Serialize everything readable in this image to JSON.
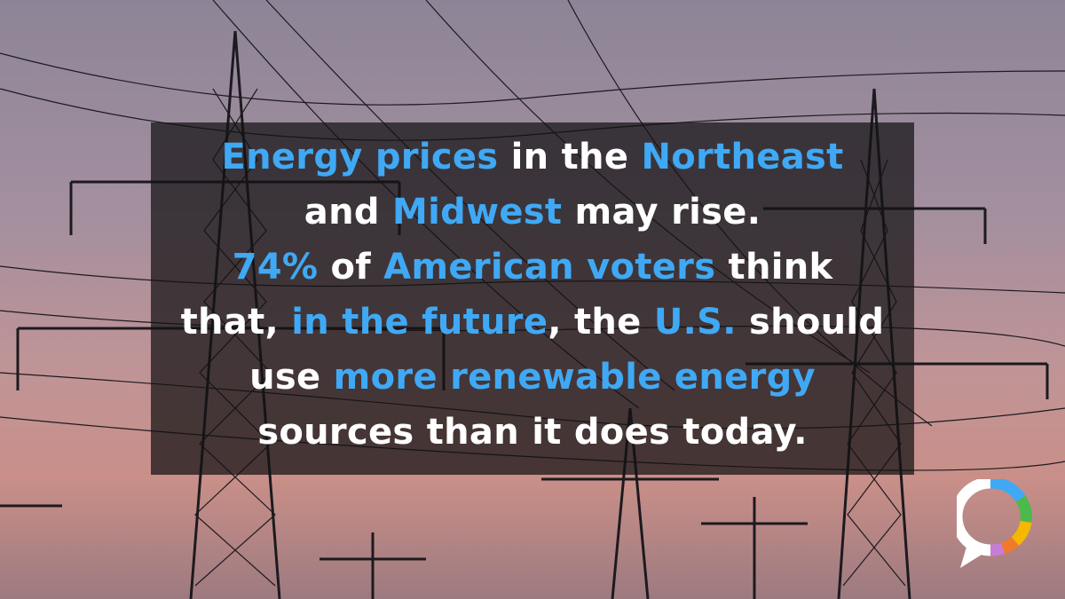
{
  "accent_color": "#3fa9f5",
  "text_color": "#ffffff",
  "lines": [
    {
      "segments": [
        {
          "text": "Energy prices",
          "highlight": true
        },
        {
          "text": " in the ",
          "highlight": false
        },
        {
          "text": "Northeast",
          "highlight": true
        }
      ]
    },
    {
      "segments": [
        {
          "text": "and ",
          "highlight": false
        },
        {
          "text": "Midwest",
          "highlight": true
        },
        {
          "text": " may rise.",
          "highlight": false
        }
      ]
    },
    {
      "segments": [
        {
          "text": "74%",
          "highlight": true
        },
        {
          "text": " of ",
          "highlight": false
        },
        {
          "text": "American voters",
          "highlight": true
        },
        {
          "text": " think",
          "highlight": false
        }
      ]
    },
    {
      "segments": [
        {
          "text": "that, ",
          "highlight": false
        },
        {
          "text": "in the future",
          "highlight": true
        },
        {
          "text": ", the ",
          "highlight": false
        },
        {
          "text": "U.S.",
          "highlight": true
        },
        {
          "text": " should",
          "highlight": false
        }
      ]
    },
    {
      "segments": [
        {
          "text": "use ",
          "highlight": false
        },
        {
          "text": "more renewable energy",
          "highlight": true
        }
      ]
    },
    {
      "segments": [
        {
          "text": "sources than it does today.",
          "highlight": false
        }
      ]
    }
  ]
}
